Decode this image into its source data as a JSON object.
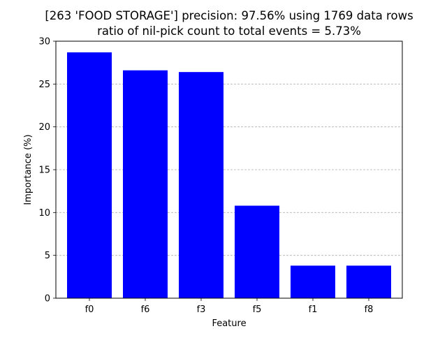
{
  "chart_data": {
    "type": "bar",
    "title": "[263 'FOOD STORAGE'] precision: 97.56% using 1769 data rows",
    "subtitle": "ratio of nil-pick count to total events = 5.73%",
    "xlabel": "Feature",
    "ylabel": "Importance (%)",
    "categories": [
      "f0",
      "f6",
      "f3",
      "f5",
      "f1",
      "f8"
    ],
    "values": [
      28.7,
      26.6,
      26.4,
      10.8,
      3.8,
      3.8
    ],
    "ylim": [
      0,
      30
    ],
    "yticks": [
      0,
      5,
      10,
      15,
      20,
      25,
      30
    ],
    "grid": "y-dashed",
    "bar_color": "#0000ff",
    "grid_color": "#b0b0b0",
    "legend": "none"
  }
}
